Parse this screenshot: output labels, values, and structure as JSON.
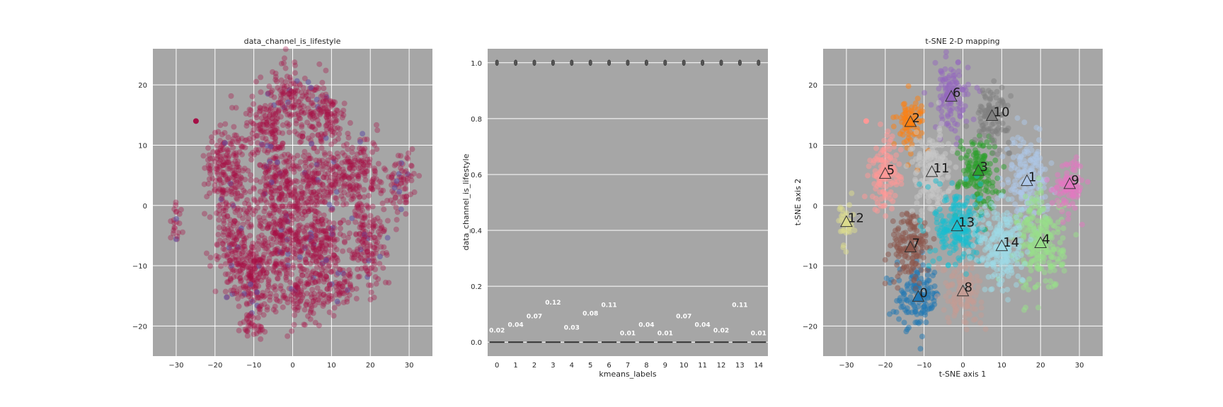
{
  "colors": {
    "plot_background": "#a6a6a6",
    "grid": "#ffffff",
    "lifestyle_0": "#a50f46",
    "lifestyle_1": "#5e4fa2",
    "mean_label": "#ffffff",
    "median_line": "#333333",
    "tab20": [
      "#1f77b4",
      "#aec7e8",
      "#ff7f0e",
      "#ffbb78",
      "#2ca02c",
      "#98df8a",
      "#d62728",
      "#ff9896",
      "#9467bd",
      "#c5b0d5",
      "#8c564b",
      "#c49c94",
      "#e377c2",
      "#f7b6d2",
      "#7f7f7f",
      "#c7c7c7",
      "#bcbd22",
      "#dbdb8d",
      "#17becf",
      "#9edae5"
    ]
  },
  "chart_data": [
    {
      "type": "scatter",
      "title": "data_channel_is_lifestyle",
      "xlabel": "",
      "ylabel": "",
      "xlim": [
        -36,
        36
      ],
      "ylim": [
        -25,
        26
      ],
      "xticks": [
        -30,
        -20,
        -10,
        0,
        10,
        20,
        30
      ],
      "yticks": [
        -20,
        -10,
        0,
        10,
        20
      ],
      "xtick_labels": [
        "−30",
        "−20",
        "−10",
        "0",
        "10",
        "20",
        "30"
      ],
      "ytick_labels": [
        "−20",
        "−10",
        "0",
        "10",
        "20"
      ],
      "grid": true,
      "color_by": "data_channel_is_lifestyle",
      "regions": [
        {
          "cx": -17,
          "cy": 7,
          "rx": 5,
          "ry": 7
        },
        {
          "cx": -15,
          "cy": -5,
          "rx": 4.5,
          "ry": 8
        },
        {
          "cx": -7,
          "cy": 13,
          "rx": 5.5,
          "ry": 5
        },
        {
          "cx": 0,
          "cy": 18,
          "rx": 5,
          "ry": 5
        },
        {
          "cx": 8,
          "cy": 15,
          "rx": 5,
          "ry": 5
        },
        {
          "cx": -4,
          "cy": 4,
          "rx": 6,
          "ry": 6
        },
        {
          "cx": 6,
          "cy": 4,
          "rx": 6,
          "ry": 6
        },
        {
          "cx": 16,
          "cy": 5,
          "rx": 6,
          "ry": 6
        },
        {
          "cx": 28,
          "cy": 4,
          "rx": 3.5,
          "ry": 4
        },
        {
          "cx": -3,
          "cy": -6,
          "rx": 7,
          "ry": 7
        },
        {
          "cx": 7,
          "cy": -7,
          "rx": 6,
          "ry": 7
        },
        {
          "cx": 19,
          "cy": -6,
          "rx": 5,
          "ry": 7
        },
        {
          "cx": -10,
          "cy": -12,
          "rx": 6,
          "ry": 6
        },
        {
          "cx": -10,
          "cy": -20,
          "rx": 3,
          "ry": 2.5
        },
        {
          "cx": 2,
          "cy": -15,
          "rx": 5,
          "ry": 4
        },
        {
          "cx": 12,
          "cy": -14,
          "rx": 4,
          "ry": 3
        },
        {
          "cx": -30,
          "cy": -3,
          "rx": 1.5,
          "ry": 3
        }
      ],
      "outliers": [
        [
          -24.9,
          14
        ]
      ]
    },
    {
      "type": "box",
      "title": "",
      "xlabel": "kmeans_labels",
      "ylabel": "data_channel_is_lifestyle",
      "categories": [
        "0",
        "1",
        "2",
        "3",
        "4",
        "5",
        "6",
        "7",
        "8",
        "9",
        "10",
        "11",
        "12",
        "13",
        "14"
      ],
      "ylim": [
        -0.05,
        1.05
      ],
      "yticks": [
        0.0,
        0.2,
        0.4,
        0.6,
        0.8,
        1.0
      ],
      "ytick_labels": [
        "0.0",
        "0.2",
        "0.4",
        "0.6",
        "0.8",
        "1.0"
      ],
      "median": [
        0,
        0,
        0,
        0,
        0,
        0,
        0,
        0,
        0,
        0,
        0,
        0,
        0,
        0,
        0
      ],
      "flier": [
        1,
        1,
        1,
        1,
        1,
        1,
        1,
        1,
        1,
        1,
        1,
        1,
        1,
        1,
        1
      ],
      "means": [
        0.02,
        0.04,
        0.07,
        0.12,
        0.03,
        0.08,
        0.11,
        0.01,
        0.04,
        0.01,
        0.07,
        0.04,
        0.02,
        0.11,
        0.01
      ],
      "mean_labels": [
        "0.02",
        "0.04",
        "0.07",
        "0.12",
        "0.03",
        "0.08",
        "0.11",
        "0.01",
        "0.04",
        "0.01",
        "0.07",
        "0.04",
        "0.02",
        "0.11",
        "0.01"
      ],
      "grid": true
    },
    {
      "type": "scatter",
      "title": "t-SNE 2-D mapping",
      "xlabel": "t-SNE axis 1",
      "ylabel": "t-SNE axis 2",
      "xlim": [
        -36,
        36
      ],
      "ylim": [
        -25,
        26
      ],
      "xticks": [
        -30,
        -20,
        -10,
        0,
        10,
        20,
        30
      ],
      "yticks": [
        -20,
        -10,
        0,
        10,
        20
      ],
      "xtick_labels": [
        "−30",
        "−20",
        "−10",
        "0",
        "10",
        "20",
        "30"
      ],
      "ytick_labels": [
        "−20",
        "−10",
        "0",
        "10",
        "20"
      ],
      "grid": true,
      "clusters": [
        {
          "label": "0",
          "color_index": 0,
          "cx": -11.5,
          "cy": -15.2,
          "rx": 5.5,
          "ry": 5
        },
        {
          "label": "1",
          "color_index": 1,
          "cx": 16.5,
          "cy": 4.0,
          "rx": 5.5,
          "ry": 7
        },
        {
          "label": "2",
          "color_index": 2,
          "cx": -13.5,
          "cy": 13.8,
          "rx": 3.5,
          "ry": 4.5
        },
        {
          "label": "3",
          "color_index": 4,
          "cx": 4.0,
          "cy": 5.7,
          "rx": 5,
          "ry": 6
        },
        {
          "label": "4",
          "color_index": 5,
          "cx": 20.0,
          "cy": -6.3,
          "rx": 6,
          "ry": 8
        },
        {
          "label": "5",
          "color_index": 7,
          "cx": -20.0,
          "cy": 5.2,
          "rx": 4,
          "ry": 6
        },
        {
          "label": "6",
          "color_index": 8,
          "cx": -3.0,
          "cy": 18.0,
          "rx": 4.5,
          "ry": 5.5
        },
        {
          "label": "7",
          "color_index": 10,
          "cx": -13.5,
          "cy": -7.0,
          "rx": 5,
          "ry": 6
        },
        {
          "label": "8",
          "color_index": 11,
          "cx": 0.0,
          "cy": -14.3,
          "rx": 5,
          "ry": 5
        },
        {
          "label": "9",
          "color_index": 12,
          "cx": 27.5,
          "cy": 3.5,
          "rx": 4,
          "ry": 4.5
        },
        {
          "label": "10",
          "color_index": 14,
          "cx": 7.5,
          "cy": 14.8,
          "rx": 4.5,
          "ry": 4.5
        },
        {
          "label": "11",
          "color_index": 15,
          "cx": -8.0,
          "cy": 5.5,
          "rx": 5,
          "ry": 7
        },
        {
          "label": "12",
          "color_index": 17,
          "cx": -30.0,
          "cy": -2.8,
          "rx": 2,
          "ry": 3.5
        },
        {
          "label": "13",
          "color_index": 18,
          "cx": -1.5,
          "cy": -3.5,
          "rx": 6,
          "ry": 6.5
        },
        {
          "label": "14",
          "color_index": 19,
          "cx": 10.0,
          "cy": -6.8,
          "rx": 6,
          "ry": 7.5
        }
      ],
      "outliers": [
        [
          -24.9,
          14
        ]
      ]
    }
  ]
}
